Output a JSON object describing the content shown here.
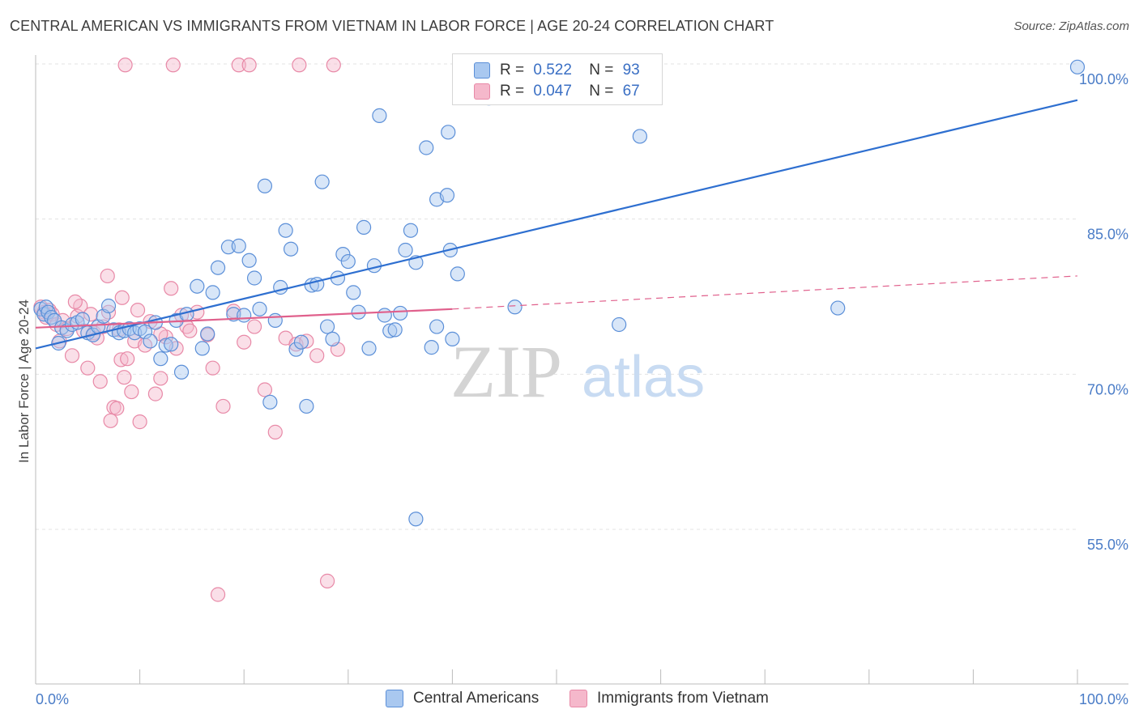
{
  "title": "CENTRAL AMERICAN VS IMMIGRANTS FROM VIETNAM IN LABOR FORCE | AGE 20-24 CORRELATION CHART",
  "source": "Source: ZipAtlas.com",
  "watermark": {
    "zip": "ZIP",
    "atlas": "atlas"
  },
  "legend_top": [
    {
      "r_label": "R =",
      "r_value": "0.522",
      "n_label": "N =",
      "n_value": "93"
    },
    {
      "r_label": "R =",
      "r_value": "0.047",
      "n_label": "N =",
      "n_value": "67"
    }
  ],
  "colors": {
    "blue_fill": "#a9c8f0",
    "blue_stroke": "#5b8fd8",
    "blue_line": "#2e6fd0",
    "pink_fill": "#f5b8cb",
    "pink_stroke": "#e889a7",
    "pink_line": "#e0608c",
    "tick_text": "#4a7cc7",
    "grid": "#e3e3e3"
  },
  "chart_data": {
    "type": "scatter",
    "title": "CENTRAL AMERICAN VS IMMIGRANTS FROM VIETNAM IN LABOR FORCE | AGE 20-24 CORRELATION CHART",
    "xlabel": "",
    "ylabel": "In Labor Force | Age 20-24",
    "xlim": [
      0,
      100
    ],
    "ylim": [
      40,
      102
    ],
    "x_ticks": [
      "0.0%",
      "100.0%"
    ],
    "y_ticks": [
      {
        "value": 100,
        "label": "100.0%"
      },
      {
        "value": 85,
        "label": "85.0%"
      },
      {
        "value": 70,
        "label": "70.0%"
      },
      {
        "value": 55,
        "label": "55.0%"
      }
    ],
    "grid": "horizontal dashed",
    "legend_placement": "top-center, bottom",
    "series": [
      {
        "name": "Central Americans",
        "r": 0.522,
        "n": 93,
        "trend": {
          "x": [
            0,
            100
          ],
          "y": [
            72.5,
            96.5
          ],
          "style": "solid"
        },
        "points": [
          [
            0.5,
            76.3
          ],
          [
            0.8,
            75.8
          ],
          [
            1.0,
            76.5
          ],
          [
            1.2,
            76.0
          ],
          [
            1.5,
            75.5
          ],
          [
            1.8,
            75.2
          ],
          [
            2.2,
            73.0
          ],
          [
            2.5,
            74.5
          ],
          [
            3.0,
            74.2
          ],
          [
            3.5,
            74.8
          ],
          [
            4.0,
            75.0
          ],
          [
            4.5,
            75.3
          ],
          [
            5.0,
            74.0
          ],
          [
            5.5,
            73.8
          ],
          [
            6.0,
            74.6
          ],
          [
            6.5,
            75.6
          ],
          [
            7.0,
            76.6
          ],
          [
            7.5,
            74.3
          ],
          [
            8.0,
            74.0
          ],
          [
            8.5,
            74.2
          ],
          [
            9.0,
            74.4
          ],
          [
            9.5,
            74.0
          ],
          [
            10.0,
            74.4
          ],
          [
            10.5,
            74.1
          ],
          [
            11.0,
            73.2
          ],
          [
            11.5,
            75.0
          ],
          [
            12.0,
            71.5
          ],
          [
            12.5,
            72.8
          ],
          [
            13.0,
            72.9
          ],
          [
            13.5,
            75.2
          ],
          [
            14.0,
            70.2
          ],
          [
            14.5,
            75.8
          ],
          [
            15.5,
            78.5
          ],
          [
            16.0,
            72.5
          ],
          [
            16.5,
            73.9
          ],
          [
            17.0,
            77.9
          ],
          [
            17.5,
            80.3
          ],
          [
            18.5,
            82.3
          ],
          [
            19.0,
            75.8
          ],
          [
            19.5,
            82.4
          ],
          [
            20.0,
            75.7
          ],
          [
            20.5,
            81.0
          ],
          [
            21.0,
            79.3
          ],
          [
            21.5,
            76.3
          ],
          [
            22.0,
            88.2
          ],
          [
            22.5,
            67.3
          ],
          [
            23.0,
            75.2
          ],
          [
            23.5,
            78.4
          ],
          [
            24.0,
            83.9
          ],
          [
            24.5,
            82.1
          ],
          [
            25.0,
            72.4
          ],
          [
            25.5,
            73.1
          ],
          [
            26.0,
            66.9
          ],
          [
            26.5,
            78.6
          ],
          [
            27.0,
            78.7
          ],
          [
            27.5,
            88.6
          ],
          [
            28.0,
            74.6
          ],
          [
            28.5,
            73.4
          ],
          [
            29.0,
            79.3
          ],
          [
            29.5,
            81.6
          ],
          [
            30.0,
            80.9
          ],
          [
            30.5,
            77.9
          ],
          [
            31.0,
            76.0
          ],
          [
            31.5,
            84.2
          ],
          [
            32.0,
            72.5
          ],
          [
            32.5,
            80.5
          ],
          [
            33.0,
            95.0
          ],
          [
            33.5,
            75.7
          ],
          [
            34.0,
            74.2
          ],
          [
            34.5,
            74.3
          ],
          [
            35.0,
            75.9
          ],
          [
            35.5,
            82.0
          ],
          [
            36.0,
            83.9
          ],
          [
            36.5,
            80.8
          ],
          [
            37.5,
            91.9
          ],
          [
            38.0,
            72.6
          ],
          [
            38.5,
            86.9
          ],
          [
            38.5,
            74.6
          ],
          [
            39.5,
            87.3
          ],
          [
            39.6,
            93.4
          ],
          [
            39.8,
            82.0
          ],
          [
            40.0,
            73.4
          ],
          [
            40.5,
            79.7
          ],
          [
            41.5,
            97.4
          ],
          [
            42.5,
            99.6
          ],
          [
            43.5,
            96.7
          ],
          [
            46.0,
            76.5
          ],
          [
            48.0,
            99.7
          ],
          [
            56.0,
            74.8
          ],
          [
            58.0,
            93.0
          ],
          [
            77.0,
            76.4
          ],
          [
            100.0,
            99.7
          ],
          [
            36.5,
            56.0
          ]
        ]
      },
      {
        "name": "Immigrants from Vietnam",
        "r": 0.047,
        "n": 67,
        "trend": {
          "x": [
            0,
            40
          ],
          "y": [
            74.5,
            76.3
          ],
          "style": "solid",
          "extension": {
            "x": [
              40,
              100
            ],
            "y": [
              76.3,
              79.5
            ],
            "style": "dashed"
          }
        },
        "points": [
          [
            0.5,
            76.5
          ],
          [
            0.8,
            76.0
          ],
          [
            1.0,
            75.5
          ],
          [
            1.3,
            76.2
          ],
          [
            1.6,
            75.8
          ],
          [
            2.0,
            74.8
          ],
          [
            2.3,
            73.2
          ],
          [
            2.6,
            75.2
          ],
          [
            3.0,
            74.4
          ],
          [
            3.5,
            71.8
          ],
          [
            4.0,
            75.6
          ],
          [
            4.3,
            76.6
          ],
          [
            4.6,
            74.2
          ],
          [
            5.0,
            70.6
          ],
          [
            5.3,
            75.8
          ],
          [
            5.6,
            74.0
          ],
          [
            5.9,
            73.5
          ],
          [
            6.2,
            69.3
          ],
          [
            6.5,
            74.6
          ],
          [
            7.0,
            76.0
          ],
          [
            7.2,
            65.5
          ],
          [
            7.5,
            66.8
          ],
          [
            7.8,
            66.7
          ],
          [
            8.0,
            74.3
          ],
          [
            8.2,
            71.4
          ],
          [
            8.5,
            69.7
          ],
          [
            8.8,
            71.5
          ],
          [
            9.2,
            68.3
          ],
          [
            9.5,
            73.2
          ],
          [
            9.8,
            76.2
          ],
          [
            10.0,
            65.4
          ],
          [
            10.5,
            72.8
          ],
          [
            11.0,
            75.1
          ],
          [
            11.5,
            68.1
          ],
          [
            12.0,
            69.6
          ],
          [
            12.5,
            73.6
          ],
          [
            13.0,
            78.3
          ],
          [
            13.5,
            72.5
          ],
          [
            14.0,
            75.7
          ],
          [
            14.5,
            74.6
          ],
          [
            14.8,
            74.2
          ],
          [
            15.5,
            76.0
          ],
          [
            16.5,
            73.8
          ],
          [
            17.0,
            70.6
          ],
          [
            17.5,
            48.7
          ],
          [
            18.0,
            66.9
          ],
          [
            19.0,
            76.1
          ],
          [
            20.0,
            73.1
          ],
          [
            21.0,
            74.6
          ],
          [
            22.0,
            68.5
          ],
          [
            23.0,
            64.4
          ],
          [
            24.0,
            73.5
          ],
          [
            25.0,
            72.9
          ],
          [
            26.0,
            73.2
          ],
          [
            27.0,
            71.8
          ],
          [
            28.0,
            50.0
          ],
          [
            29.0,
            72.4
          ],
          [
            8.3,
            77.4
          ],
          [
            8.6,
            99.9
          ],
          [
            13.2,
            99.9
          ],
          [
            19.5,
            99.9
          ],
          [
            20.5,
            99.9
          ],
          [
            25.3,
            99.9
          ],
          [
            28.6,
            99.9
          ],
          [
            6.9,
            79.5
          ],
          [
            12.0,
            73.9
          ],
          [
            3.8,
            77.0
          ]
        ]
      }
    ]
  },
  "legend_bottom": [
    "Central Americans",
    "Immigrants from Vietnam"
  ]
}
